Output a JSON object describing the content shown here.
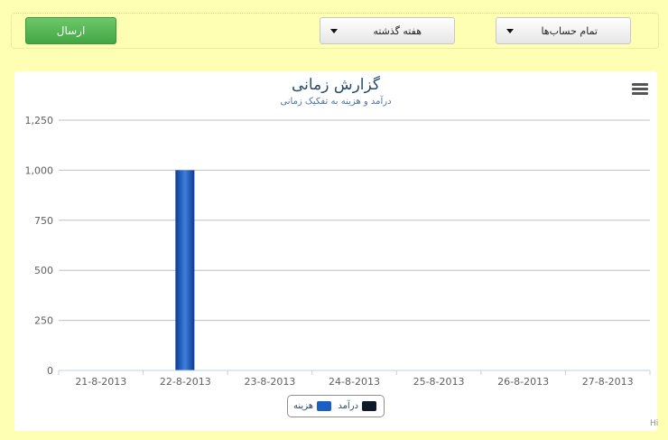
{
  "toolbar": {
    "send_label": "ارسال",
    "period_select": "هفته گذشته",
    "accounts_select": "تمام حساب‌ها"
  },
  "chart": {
    "title": "گزارش زمانی",
    "subtitle": "درآمد و هزینه به تفکیک زمانی",
    "credit": "Hi"
  },
  "legend": {
    "income": "درآمد",
    "cost": "هزینه"
  },
  "colors": {
    "background": "#ffffb3",
    "cost_bar": "#1c5fc2",
    "income": "#0d1a2a",
    "title": "#274b6d"
  },
  "chart_data": {
    "type": "bar",
    "title": "گزارش زمانی",
    "subtitle": "درآمد و هزینه به تفکیک زمانی",
    "categories": [
      "21-8-2013",
      "22-8-2013",
      "23-8-2013",
      "24-8-2013",
      "25-8-2013",
      "26-8-2013",
      "27-8-2013"
    ],
    "series": [
      {
        "name": "درآمد",
        "values": [
          0,
          0,
          0,
          0,
          0,
          0,
          0
        ]
      },
      {
        "name": "هزینه",
        "values": [
          0,
          1000,
          0,
          0,
          0,
          0,
          0
        ]
      }
    ],
    "yticks": [
      0,
      250,
      500,
      750,
      1000,
      1250
    ],
    "ytick_labels": [
      "0",
      "250",
      "500",
      "750",
      "1,000",
      "1,250"
    ],
    "ylim": [
      0,
      1250
    ],
    "grid": true,
    "legend_position": "bottom-center"
  }
}
